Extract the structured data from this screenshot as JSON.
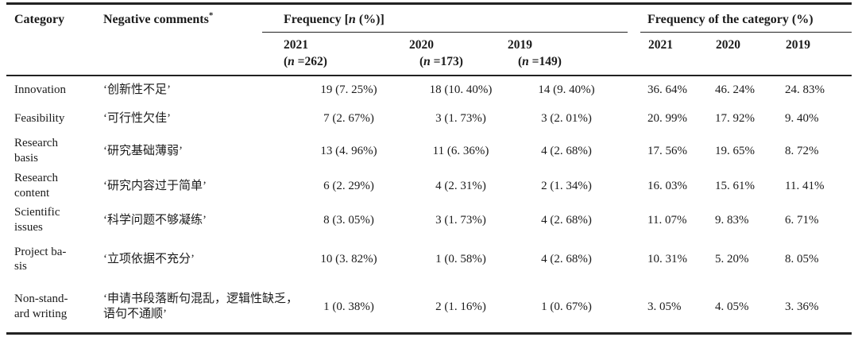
{
  "table": {
    "header": {
      "category": "Category",
      "comments": "Negative comments",
      "comments_asterisk": "*",
      "freq_group": {
        "pre": "Frequency [",
        "italic_n": "n",
        "post": " (%)]"
      },
      "cat_group": "Frequency of the category (%)",
      "freq_years": [
        {
          "year": "2021",
          "n_pre": "(",
          "n_italic": "n",
          "n_post": " =262)"
        },
        {
          "year": "2020",
          "n_pre": "(",
          "n_italic": "n",
          "n_post": " =173)"
        },
        {
          "year": "2019",
          "n_pre": "(",
          "n_italic": "n",
          "n_post": " =149)"
        }
      ],
      "cat_years": [
        "2021",
        "2020",
        "2019"
      ]
    },
    "rows": [
      {
        "category": "Innovation",
        "comment": "‘创新性不足’",
        "freq": [
          "19 (7. 25%)",
          "18 (10. 40%)",
          "14 (9. 40%)"
        ],
        "cat_freq": [
          "36. 64%",
          "46. 24%",
          "24. 83%"
        ]
      },
      {
        "category": "Feasibility",
        "comment": "‘可行性欠佳’",
        "freq": [
          "7 (2. 67%)",
          "3 (1. 73%)",
          "3 (2. 01%)"
        ],
        "cat_freq": [
          "20. 99%",
          "17. 92%",
          "9. 40%"
        ]
      },
      {
        "category": "Research\nbasis",
        "comment": "‘研究基础薄弱’",
        "freq": [
          "13 (4. 96%)",
          "11 (6. 36%)",
          "4 (2. 68%)"
        ],
        "cat_freq": [
          "17. 56%",
          "19. 65%",
          "8. 72%"
        ]
      },
      {
        "category": "Research\ncontent",
        "comment": "‘研究内容过于简单’",
        "freq": [
          "6 (2. 29%)",
          "4 (2. 31%)",
          "2 (1. 34%)"
        ],
        "cat_freq": [
          "16. 03%",
          "15. 61%",
          "11. 41%"
        ]
      },
      {
        "category": "Scientific\nissues",
        "comment": "‘科学问题不够凝练’",
        "freq": [
          "8 (3. 05%)",
          "3 (1. 73%)",
          "4 (2. 68%)"
        ],
        "cat_freq": [
          "11. 07%",
          "9. 83%",
          "6. 71%"
        ]
      },
      {
        "category": "Project ba-\nsis",
        "comment": "‘立项依据不充分’",
        "freq": [
          "10 (3. 82%)",
          "1 (0. 58%)",
          "4 (2. 68%)"
        ],
        "cat_freq": [
          "10. 31%",
          "5. 20%",
          "8. 05%"
        ]
      },
      {
        "category": "Non-stand-\nard writing",
        "comment": "‘申请书段落断句混乱，逻辑性缺乏，\n语句不通顺’",
        "freq": [
          "1 (0. 38%)",
          "2 (1. 16%)",
          "1 (0. 67%)"
        ],
        "cat_freq": [
          "3. 05%",
          "4. 05%",
          "3. 36%"
        ]
      }
    ]
  }
}
